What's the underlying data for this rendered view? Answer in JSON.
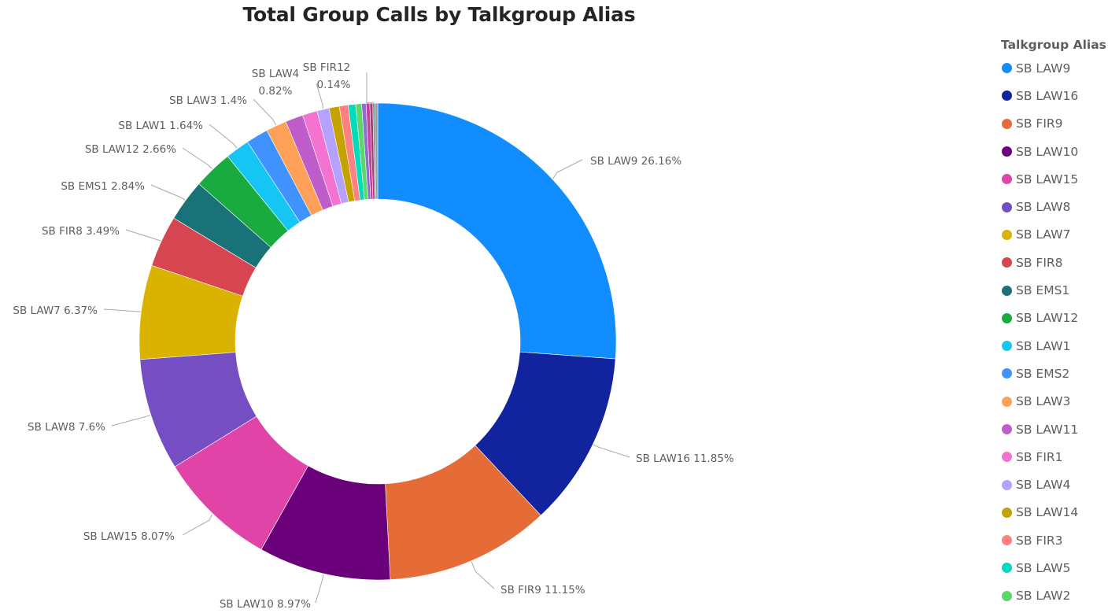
{
  "chart_data": {
    "type": "pie",
    "subtype": "donut",
    "title": "Total Group Calls by Talkgroup Alias",
    "legend_title": "Talkgroup Alias",
    "legend_position": "right",
    "slices": [
      {
        "name": "SB LAW9",
        "percent": 26.16,
        "color": "#118DFF",
        "label": "SB LAW9 26.16%"
      },
      {
        "name": "SB LAW16",
        "percent": 11.85,
        "color": "#12239E",
        "label": "SB LAW16 11.85%"
      },
      {
        "name": "SB FIR9",
        "percent": 11.15,
        "color": "#E66C37",
        "label": "SB FIR9 11.15%"
      },
      {
        "name": "SB LAW10",
        "percent": 8.97,
        "color": "#6B007B",
        "label": "SB LAW10 8.97%"
      },
      {
        "name": "SB LAW15",
        "percent": 8.07,
        "color": "#E044A7",
        "label": "SB LAW15 8.07%"
      },
      {
        "name": "SB LAW8",
        "percent": 7.6,
        "color": "#744EC2",
        "label": "SB LAW8 7.6%"
      },
      {
        "name": "SB LAW7",
        "percent": 6.37,
        "color": "#D9B300",
        "label": "SB LAW7 6.37%"
      },
      {
        "name": "SB FIR8",
        "percent": 3.49,
        "color": "#D64550",
        "label": "SB FIR8 3.49%"
      },
      {
        "name": "SB EMS1",
        "percent": 2.84,
        "color": "#197278",
        "label": "SB EMS1 2.84%"
      },
      {
        "name": "SB LAW12",
        "percent": 2.66,
        "color": "#1AAB40",
        "label": "SB LAW12 2.66%"
      },
      {
        "name": "SB LAW1",
        "percent": 1.64,
        "color": "#15C6F4",
        "label": "SB LAW1 1.64%"
      },
      {
        "name": "SB EMS2",
        "percent": 1.5,
        "color": "#4092FF",
        "label": ""
      },
      {
        "name": "SB LAW3",
        "percent": 1.4,
        "color": "#FFA058",
        "label": "SB LAW3 1.4%"
      },
      {
        "name": "SB LAW11",
        "percent": 1.2,
        "color": "#BE5DC9",
        "label": ""
      },
      {
        "name": "SB FIR1",
        "percent": 1.0,
        "color": "#F472D0",
        "label": ""
      },
      {
        "name": "SB LAW4",
        "percent": 0.82,
        "color": "#B5A1FF",
        "label": "SB LAW4\n0.82%"
      },
      {
        "name": "SB LAW14",
        "percent": 0.7,
        "color": "#C4A200",
        "label": ""
      },
      {
        "name": "SB FIR3",
        "percent": 0.6,
        "color": "#FF8080",
        "label": ""
      },
      {
        "name": "SB LAW5",
        "percent": 0.5,
        "color": "#00DBBC",
        "label": ""
      },
      {
        "name": "SB LAW2",
        "percent": 0.4,
        "color": "#5BD667",
        "label": ""
      },
      {
        "name": "",
        "percent": 0.3,
        "color": "#8D6FD1",
        "label": ""
      },
      {
        "name": "",
        "percent": 0.25,
        "color": "#C83D95",
        "label": ""
      },
      {
        "name": "",
        "percent": 0.2,
        "color": "#A43B76",
        "label": ""
      },
      {
        "name": "SB FIR12",
        "percent": 0.14,
        "color": "#6F8F8A",
        "label": "SB FIR12\n0.14%"
      },
      {
        "name": "",
        "percent": 0.19,
        "color": "#999999",
        "label": ""
      }
    ],
    "legend_items": [
      "SB LAW9",
      "SB LAW16",
      "SB FIR9",
      "SB LAW10",
      "SB LAW15",
      "SB LAW8",
      "SB LAW7",
      "SB FIR8",
      "SB EMS1",
      "SB LAW12",
      "SB LAW1",
      "SB EMS2",
      "SB LAW3",
      "SB LAW11",
      "SB FIR1",
      "SB LAW4",
      "SB LAW14",
      "SB FIR3",
      "SB LAW5",
      "SB LAW2"
    ]
  }
}
